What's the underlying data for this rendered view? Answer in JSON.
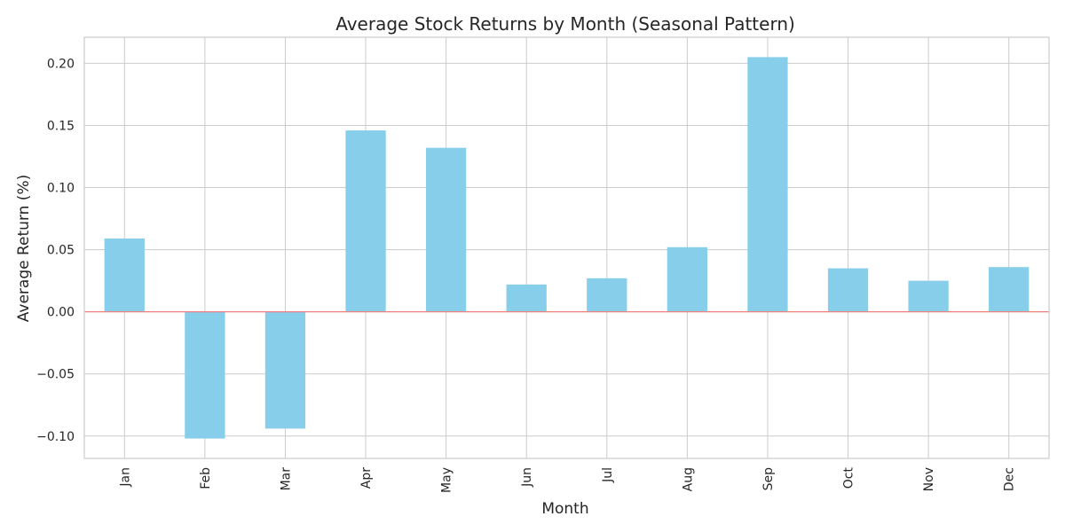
{
  "chart_data": {
    "type": "bar",
    "title": "Average Stock Returns by Month (Seasonal Pattern)",
    "xlabel": "Month",
    "ylabel": "Average Return (%)",
    "categories": [
      "Jan",
      "Feb",
      "Mar",
      "Apr",
      "May",
      "Jun",
      "Jul",
      "Aug",
      "Sep",
      "Oct",
      "Nov",
      "Dec"
    ],
    "values": [
      0.059,
      -0.102,
      -0.094,
      0.146,
      0.132,
      0.022,
      0.027,
      0.052,
      0.205,
      0.035,
      0.025,
      0.036
    ],
    "ylim": [
      -0.118,
      0.221
    ],
    "yticks": [
      -0.1,
      -0.05,
      0.0,
      0.05,
      0.1,
      0.15,
      0.2
    ],
    "ytick_labels": [
      "−0.10",
      "−0.05",
      "0.00",
      "0.05",
      "0.10",
      "0.15",
      "0.20"
    ],
    "grid": true,
    "bar_color": "#87ceeb",
    "reference_line": {
      "y": 0,
      "color": "#f08080"
    }
  }
}
